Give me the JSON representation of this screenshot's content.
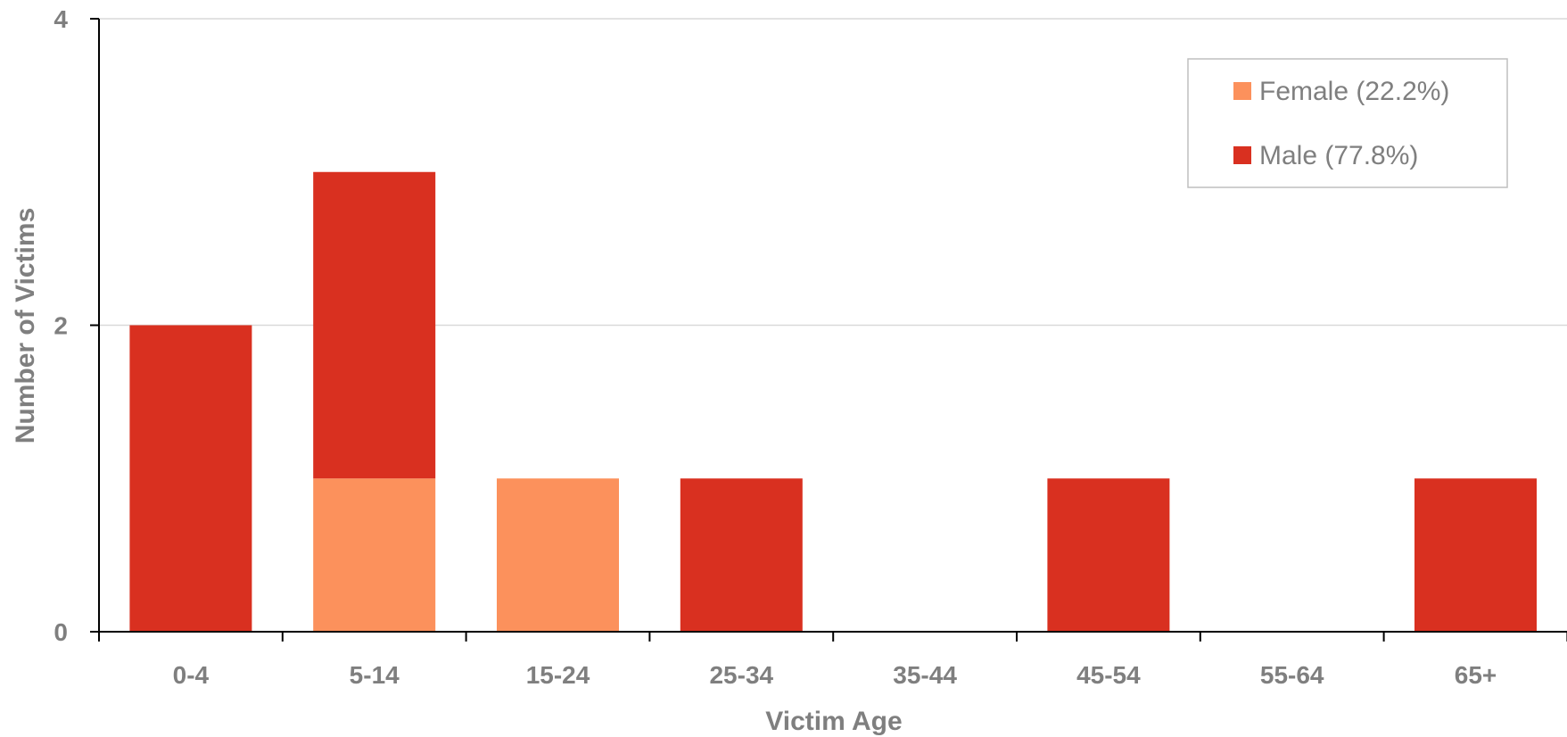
{
  "chart_data": {
    "type": "bar",
    "stacked": true,
    "categories": [
      "0-4",
      "5-14",
      "15-24",
      "25-34",
      "35-44",
      "45-54",
      "55-64",
      "65+"
    ],
    "series": [
      {
        "name": "Female (22.2%)",
        "color": "#FC915C",
        "values": [
          0,
          1,
          1,
          0,
          0,
          0,
          0,
          0
        ]
      },
      {
        "name": "Male (77.8%)",
        "color": "#D93020",
        "values": [
          2,
          2,
          0,
          1,
          0,
          1,
          0,
          1
        ]
      }
    ],
    "xlabel": "Victim Age",
    "ylabel": "Number of Victims",
    "ylim": [
      0,
      4
    ],
    "yticks": [
      "0",
      "2",
      "4"
    ],
    "grid": true,
    "legend_position": "top-right"
  }
}
